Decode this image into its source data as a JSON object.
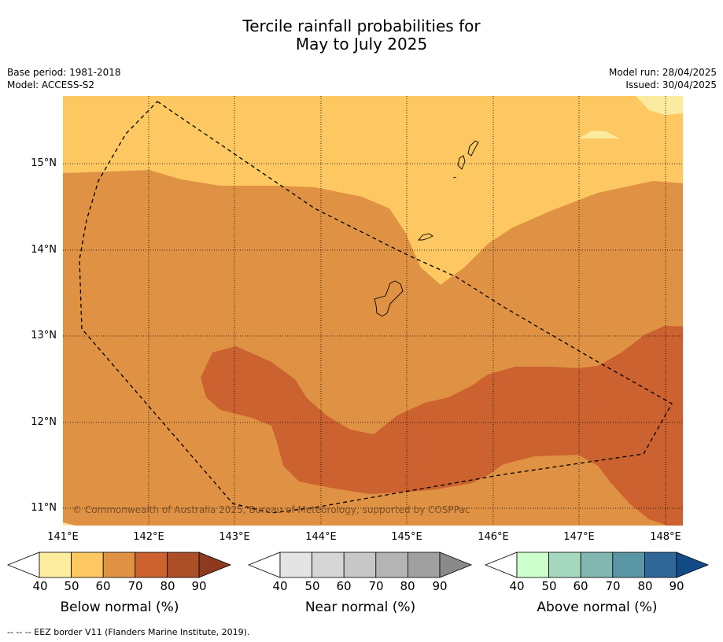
{
  "header": {
    "title_line1": "Tercile rainfall probabilities for",
    "title_line2": "May to July 2025",
    "base_period": "Base period: 1981-2018",
    "model": "Model: ACCESS-S2",
    "model_run": "Model run: 28/04/2025",
    "issued": "Issued: 30/04/2025"
  },
  "map": {
    "lon_labels": [
      "141°E",
      "142°E",
      "143°E",
      "144°E",
      "145°E",
      "146°E",
      "147°E",
      "148°E"
    ],
    "lat_labels": [
      "15°N",
      "14°N",
      "13°N",
      "12°N",
      "11°N"
    ],
    "lon_range": [
      140.99,
      148.2
    ],
    "lat_range": [
      10.8,
      15.8
    ],
    "gridlines": true,
    "copyright": "© Commonwealth of Australia 2025, Bureau of Meteorology, supported by COSPPac",
    "fill_colors": {
      "below_50": "#fbea9f",
      "below_60": "#fdc862",
      "below_70": "#e09244",
      "below_80": "#cb6230"
    }
  },
  "colorbars": [
    {
      "title": "Below normal (%)",
      "ticks": [
        "40",
        "50",
        "60",
        "70",
        "80",
        "90"
      ],
      "colors": [
        "#ffffff",
        "#fdee9f",
        "#fdc862",
        "#e09244",
        "#cb6230",
        "#ac4f29",
        "#8e3a20"
      ]
    },
    {
      "title": "Near normal (%)",
      "ticks": [
        "40",
        "50",
        "60",
        "70",
        "80",
        "90"
      ],
      "colors": [
        "#ffffff",
        "#e4e4e4",
        "#d6d6d6",
        "#c7c7c7",
        "#b4b4b4",
        "#a0a0a0",
        "#8a8a8a"
      ]
    },
    {
      "title": "Above normal (%)",
      "ticks": [
        "40",
        "50",
        "60",
        "70",
        "80",
        "90"
      ],
      "colors": [
        "#ffffff",
        "#ccffcc",
        "#a6d8bf",
        "#82b6b0",
        "#5995a4",
        "#306799",
        "#134a88"
      ]
    }
  ],
  "footer": {
    "eez_note": "-- -- -- EEZ border V11 (Flanders Marine Institute, 2019)."
  }
}
